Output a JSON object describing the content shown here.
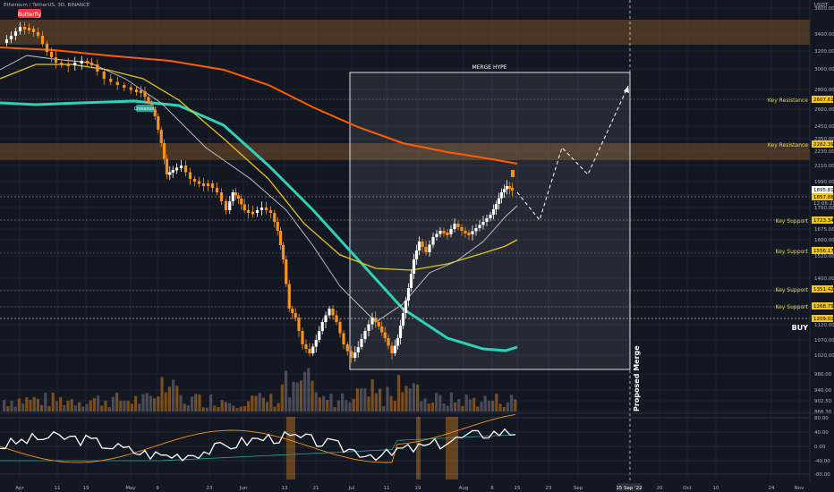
{
  "header": {
    "symbol_title": "Ethereum / TetherUS, 3D, BINANCE",
    "currency": "USDT"
  },
  "colors": {
    "background": "#131722",
    "up": "#ffffff",
    "down": "#f7931a",
    "ma_orange": "#ff5d00",
    "ma_teal": "#2ed3b7",
    "ma_yellow": "#e8c31b",
    "ma_white": "#c9c9c9",
    "zone": "#8a5b2a",
    "label_red": "#f23645",
    "label_green": "#26a69a"
  },
  "annotations": {
    "merge_box": "MERGE HYPE",
    "proposed_merge": "Proposed Merge",
    "buy": "BUY",
    "butterfly": "Butterfly",
    "crossover": "Crossover"
  },
  "chart_data": {
    "type": "candlestick",
    "title": "Ethereum / TetherUS, 3D, BINANCE",
    "y_axis": {
      "unit": "USDT",
      "ticks": [
        3600,
        3400,
        3200,
        3000,
        2800,
        2600,
        2450,
        2350,
        2230,
        2110,
        1990,
        1890,
        1790,
        1675,
        1600,
        1520,
        1400,
        1300,
        1200,
        1120,
        1070,
        1020,
        980,
        940,
        902.5,
        866.3
      ]
    },
    "x_axis": {
      "ticks": [
        "Apr",
        "11",
        "19",
        "May",
        "9",
        "23",
        "Jun",
        "13",
        "21",
        "Jul",
        "11",
        "19",
        "Aug",
        "8",
        "15",
        "23",
        "Sep",
        "15 Sep '22",
        "20",
        "Oct",
        "10",
        "24",
        "Nov"
      ]
    },
    "price_labels": [
      {
        "label": "Key Resistance",
        "value": "2607.61"
      },
      {
        "label": "Key Resistance",
        "value": "2282.39"
      },
      {
        "label": "",
        "value": "1895.81"
      },
      {
        "label": "",
        "value": "1857.88"
      },
      {
        "label": "",
        "value": "12:06:21"
      },
      {
        "label": "Key Support",
        "value": "1723.34"
      },
      {
        "label": "Key Support",
        "value": "1556.17"
      },
      {
        "label": "Key Support",
        "value": "1351.42"
      },
      {
        "label": "Key Support",
        "value": "1268.79"
      },
      {
        "label": "",
        "value": "1209.01"
      }
    ],
    "oscillator": {
      "ticks": [
        "80.00",
        "40.00",
        "0.00",
        "-40.00",
        "-80.00"
      ]
    },
    "grid": true,
    "legend": "none"
  }
}
